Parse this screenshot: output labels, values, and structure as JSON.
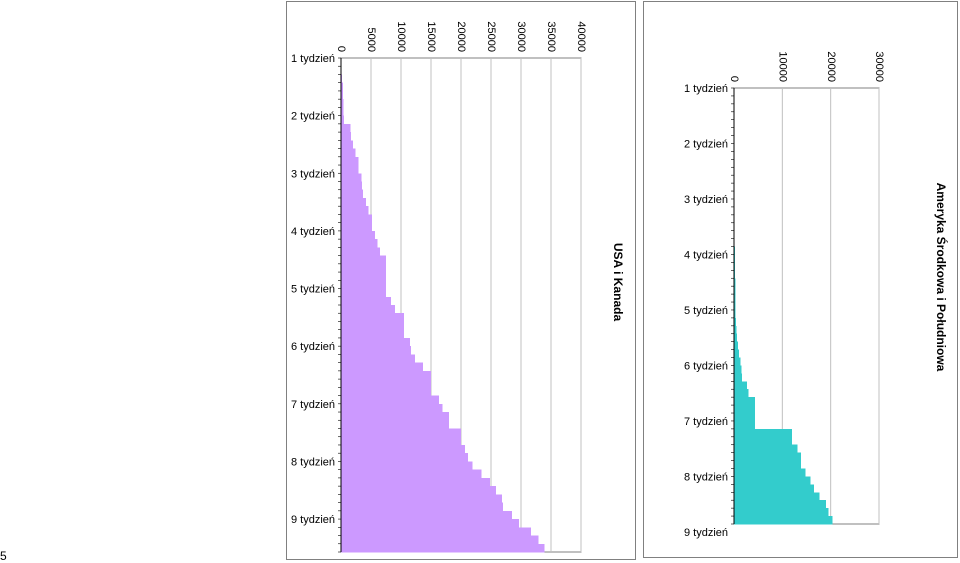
{
  "page": {
    "number": "5"
  },
  "chart_data": [
    {
      "type": "bar",
      "orientation": "horizontal",
      "title": "USA i Kanada",
      "color": "#cc99ff",
      "xlim": [
        0,
        40000
      ],
      "x_ticks": [
        "0",
        "5000",
        "10000",
        "15000",
        "20000",
        "25000",
        "30000",
        "35000",
        "40000"
      ],
      "y_ticks": [
        "1 tydzień",
        "2 tydzień",
        "3 tydzień",
        "4 tydzień",
        "5 tydzień",
        "6 tydzień",
        "7 tydzień",
        "8 tydzień",
        "9 tydzień"
      ],
      "days_per_week": 7,
      "grid": true,
      "values": [
        100,
        100,
        200,
        300,
        300,
        400,
        400,
        500,
        1600,
        1700,
        2000,
        2400,
        2900,
        2900,
        3400,
        3500,
        3700,
        4200,
        4600,
        5200,
        5200,
        5700,
        6100,
        6500,
        7500,
        7500,
        7500,
        7500,
        7500,
        8300,
        9000,
        10500,
        10500,
        10500,
        11500,
        11700,
        12300,
        13700,
        15000,
        15000,
        15000,
        16300,
        16900,
        18000,
        18000,
        20000,
        20000,
        20700,
        21200,
        21900,
        23400,
        24800,
        25800,
        26800,
        27000,
        28500,
        29700,
        31700,
        32900,
        33900
      ]
    },
    {
      "type": "bar",
      "orientation": "horizontal",
      "title": "Ameryka Środkowa i Południowa",
      "color": "#33cccc",
      "xlim": [
        0,
        30000
      ],
      "x_ticks": [
        "0",
        "10000",
        "20000",
        "30000"
      ],
      "y_ticks": [
        "1 tydzień",
        "2 tydzień",
        "3 tydzień",
        "4 tydzień",
        "5 tydzień",
        "6 tydzień",
        "7 tydzień",
        "8 tydzień",
        "9 tydzień"
      ],
      "days_per_week": 7,
      "grid": true,
      "values": [
        0,
        0,
        0,
        0,
        0,
        0,
        0,
        0,
        0,
        0,
        0,
        0,
        0,
        0,
        0,
        0,
        100,
        100,
        100,
        100,
        200,
        200,
        200,
        200,
        300,
        300,
        300,
        300,
        300,
        400,
        500,
        600,
        800,
        1000,
        1300,
        1600,
        1700,
        2700,
        3000,
        4300,
        4300,
        4300,
        4300,
        12000,
        12000,
        13100,
        13900,
        13900,
        14800,
        15800,
        16500,
        17700,
        19000,
        19600,
        20400
      ]
    }
  ]
}
